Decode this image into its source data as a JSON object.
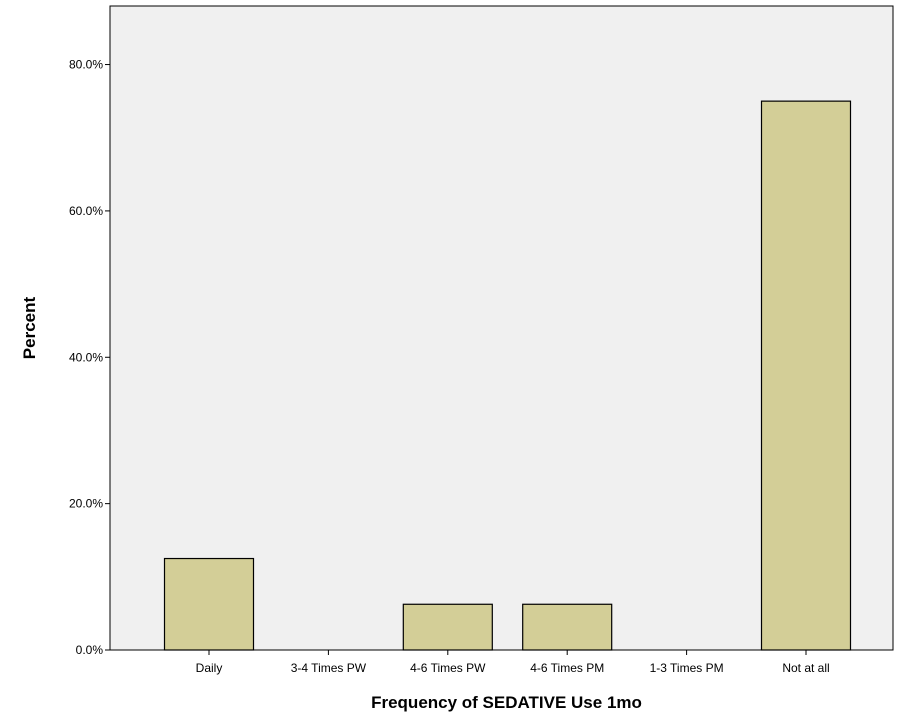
{
  "chart_data": {
    "type": "bar",
    "title": "",
    "xlabel": "Frequency of SEDATIVE Use 1mo",
    "ylabel": "Percent",
    "categories": [
      "Daily",
      "3-4 Times PW",
      "4-6 Times PW",
      "4-6 Times PM",
      "1-3 Times PM",
      "Not at all"
    ],
    "values": [
      12.5,
      0,
      6.25,
      6.25,
      0,
      75.0
    ],
    "ylim": [
      0,
      88
    ],
    "yticks": [
      0,
      20,
      40,
      60,
      80
    ],
    "ytick_labels": [
      "0.0%",
      "20.0%",
      "40.0%",
      "60.0%",
      "80.0%"
    ],
    "grid": false,
    "colors": {
      "plot_background": "#f0f0f0",
      "bar_fill": "#d3ce97",
      "bar_stroke": "#000000",
      "axis": "#000000"
    }
  }
}
